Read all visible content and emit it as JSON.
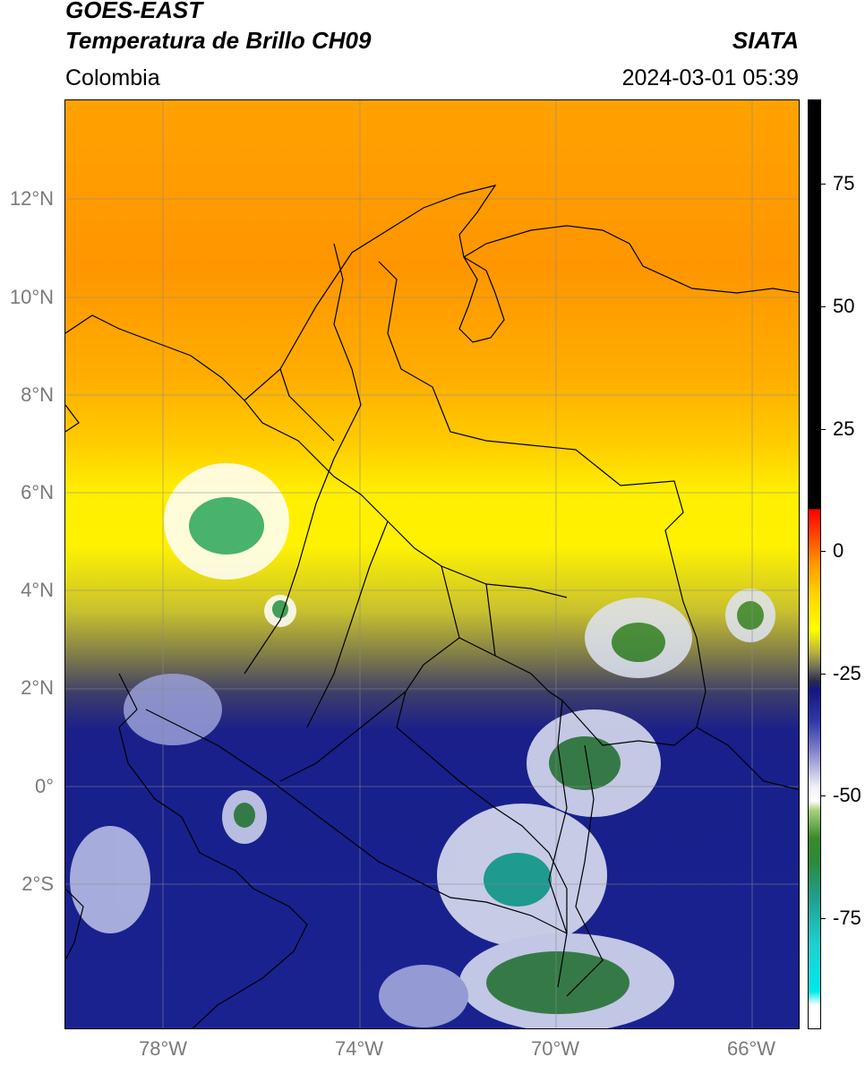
{
  "header": {
    "title_line1": "GOES-EAST",
    "title_line2": "Temperatura de Brillo CH09",
    "source": "SIATA",
    "region": "Colombia",
    "timestamp": "2024-03-01 05:39"
  },
  "axes": {
    "lat_labels": [
      "12°N",
      "10°N",
      "8°N",
      "6°N",
      "4°N",
      "2°N",
      "0°",
      "2°S"
    ],
    "lon_labels": [
      "78°W",
      "74°W",
      "70°W",
      "66°W"
    ]
  },
  "colorbar": {
    "labels": [
      "75",
      "50",
      "25",
      "0",
      "-25",
      "-50",
      "-75"
    ]
  }
}
